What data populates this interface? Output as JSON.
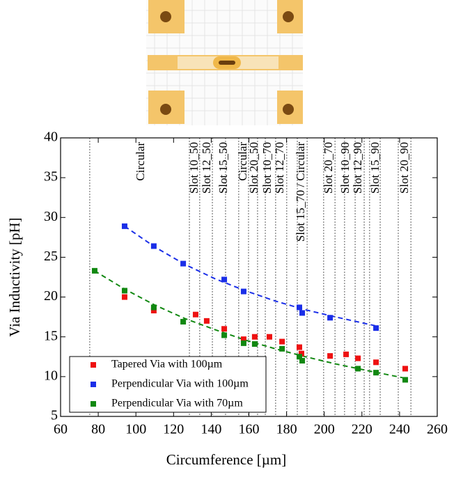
{
  "chart_data": {
    "type": "scatter",
    "x_label": "Circumference [µm]",
    "y_label": "Via Inductivity [pH]",
    "xlim": [
      60,
      260
    ],
    "xticks": [
      60,
      80,
      100,
      120,
      140,
      160,
      180,
      200,
      220,
      240,
      260
    ],
    "ylim": [
      5,
      40
    ],
    "yticks": [
      5,
      10,
      15,
      20,
      25,
      30,
      35,
      40
    ],
    "legend": "lower left",
    "series": [
      {
        "name": "Tapered Via with 100µm",
        "color": "#ee1111",
        "x": [
          94.0,
          109.5,
          131.7,
          137.6,
          146.9,
          157.2,
          163.1,
          170.9,
          177.6,
          186.8,
          187.9,
          203.1,
          211.6,
          217.9,
          227.5,
          243.0
        ],
        "values": [
          20.0,
          18.3,
          17.8,
          17.0,
          16.0,
          14.7,
          15.0,
          15.0,
          14.4,
          13.7,
          12.9,
          12.6,
          12.8,
          12.3,
          11.8,
          11.0
        ]
      },
      {
        "name": "Perpendicular Via with 100µm",
        "color": "#1a2ee8",
        "x": [
          94.0,
          109.5,
          125.1,
          146.9,
          157.2,
          186.8,
          188.3,
          203.1,
          227.5
        ],
        "values": [
          28.9,
          26.4,
          24.2,
          22.2,
          20.7,
          18.7,
          18.0,
          17.4,
          16.1
        ]
      },
      {
        "name": "Perpendicular Via with 70µm",
        "color": "#118811",
        "x": [
          78.1,
          94.0,
          109.5,
          125.1,
          146.9,
          157.2,
          163.1,
          177.6,
          186.8,
          188.3,
          217.9,
          227.5,
          243.0
        ],
        "values": [
          23.3,
          20.8,
          18.7,
          16.9,
          15.2,
          14.2,
          14.1,
          13.5,
          12.5,
          12.0,
          11.0,
          10.5,
          9.6
        ]
      }
    ],
    "fits": [
      {
        "color": "#1a2ee8",
        "x": [
          94,
          110,
          126,
          142,
          158,
          174,
          190,
          206,
          227
        ],
        "y": [
          28.9,
          26.3,
          24.1,
          22.3,
          20.8,
          19.5,
          18.4,
          17.5,
          16.4
        ]
      },
      {
        "color": "#118811",
        "x": [
          78,
          94,
          110,
          126,
          142,
          158,
          174,
          190,
          206,
          222,
          243
        ],
        "y": [
          23.3,
          21.0,
          19.0,
          17.3,
          15.9,
          14.6,
          13.5,
          12.5,
          11.6,
          10.8,
          9.8
        ]
      }
    ],
    "vlines": [
      75.5,
      128.4,
      133.9,
      140.6,
      147.6,
      154.6,
      159.8,
      164.6,
      168.7,
      174.2,
      180.1,
      185.7,
      190.9,
      199.7,
      205.7,
      210.8,
      216.4,
      221.2,
      224.1,
      229.7,
      239.3,
      246.0
    ],
    "annotations": [
      {
        "text": "Circular",
        "x": 102.9
      },
      {
        "text": "Slot 10_50",
        "x": 131.3
      },
      {
        "text": "Slot 12_50",
        "x": 138.0
      },
      {
        "text": "Slot 15_50",
        "x": 146.9
      },
      {
        "text": "Circular",
        "x": 157.2
      },
      {
        "text": "Slot 20_50",
        "x": 163.1
      },
      {
        "text": "Slot 10_70",
        "x": 170.2
      },
      {
        "text": "Slot 12_70",
        "x": 176.8
      },
      {
        "text": "Slot 15_70 / Circular",
        "x": 187.9
      },
      {
        "text": "Slot 20_70",
        "x": 202.7
      },
      {
        "text": "Slot 10_90",
        "x": 211.6
      },
      {
        "text": "Slot 12_90",
        "x": 218.2
      },
      {
        "text": "Slot 15_90",
        "x": 227.5
      },
      {
        "text": "Slot 20_90",
        "x": 243.0
      }
    ]
  }
}
